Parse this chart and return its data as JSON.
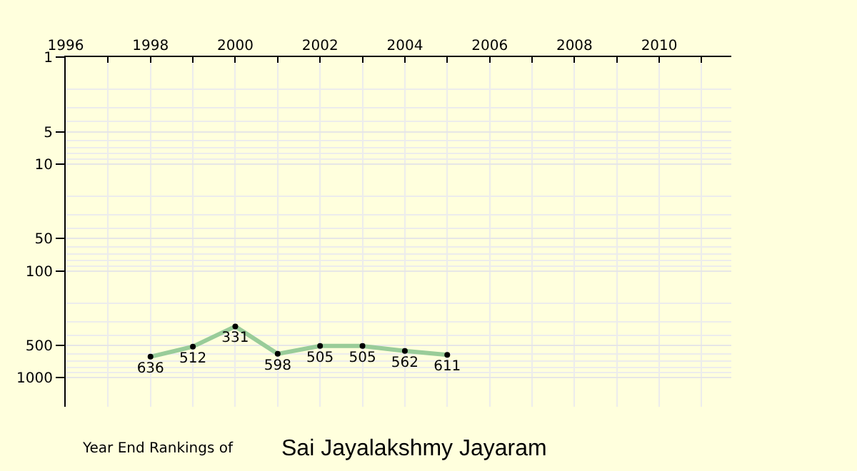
{
  "chart_data": {
    "type": "line",
    "title": "Year End Rankings of",
    "subtitle": "Sai Jayalakshmy Jayaram",
    "x": [
      1998,
      1999,
      2000,
      2001,
      2002,
      2003,
      2004,
      2005
    ],
    "series": [
      {
        "color": "#99cc99",
        "values": [
          636,
          512,
          331,
          598,
          505,
          505,
          562,
          611
        ]
      }
    ],
    "xlim": [
      1996,
      2011.7
    ],
    "xticks": [
      1996,
      {
        "value": 1997,
        "label": null
      },
      1998,
      {
        "value": 1999,
        "label": null
      },
      2000,
      {
        "value": 2001,
        "label": null
      },
      2002,
      {
        "value": 2003,
        "label": null
      },
      2004,
      {
        "value": 2005,
        "label": null
      },
      2006,
      {
        "value": 2007,
        "label": null
      },
      2008,
      {
        "value": 2009,
        "label": null
      },
      2010,
      {
        "value": 2011,
        "label": null
      }
    ],
    "ylim": [
      1870,
      1
    ],
    "yticks": [
      1,
      5,
      10,
      50,
      100,
      500,
      1000
    ],
    "log": "y",
    "grid": true,
    "marker": "circle",
    "data_labels": true,
    "legend": false
  }
}
